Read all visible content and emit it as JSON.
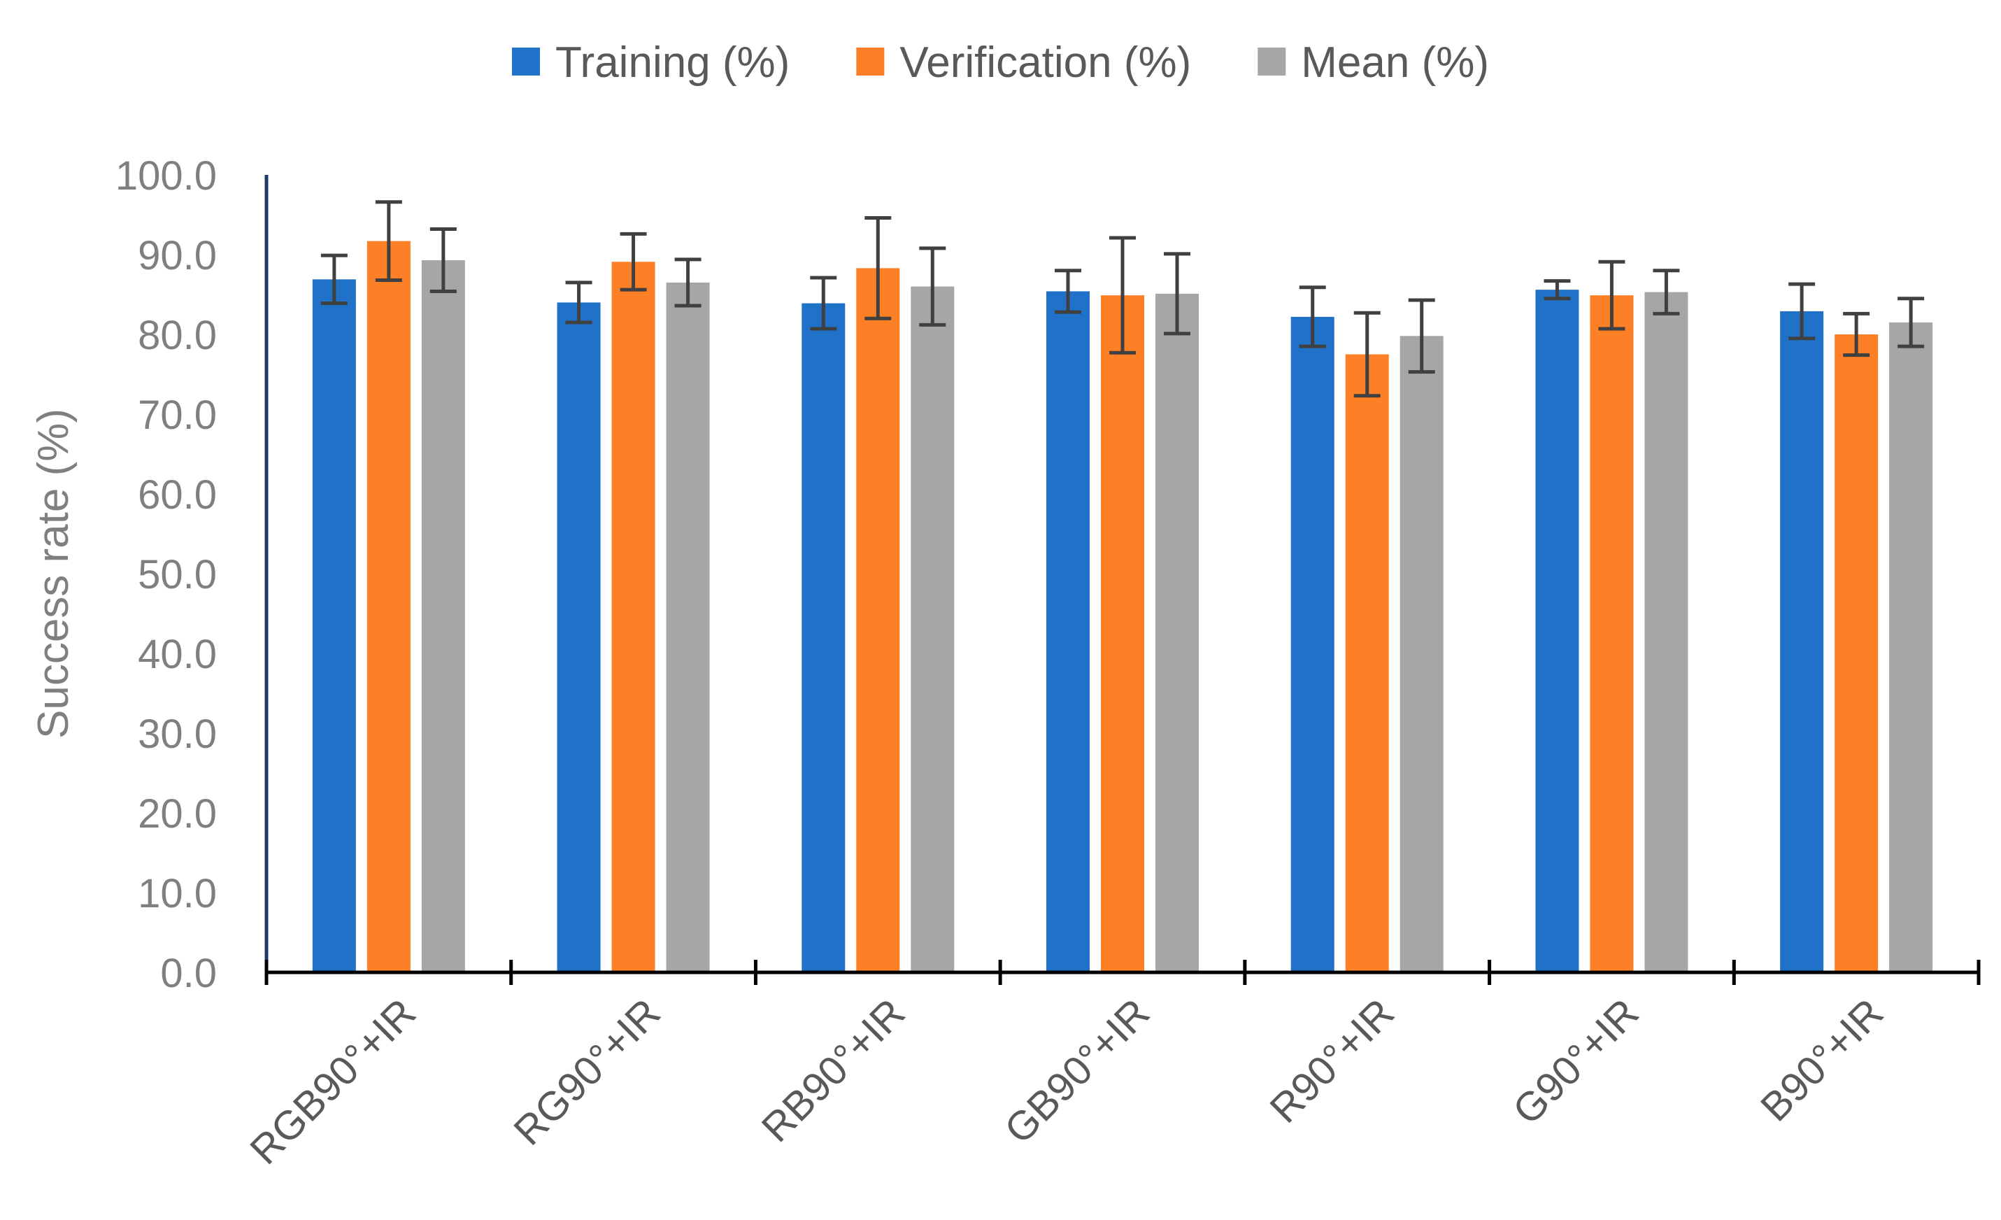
{
  "chart_data": {
    "type": "bar",
    "title": "",
    "xlabel": "",
    "ylabel": "Success rate (%)",
    "ylim": [
      0,
      100
    ],
    "ytick_step": 10,
    "ytick_labels": [
      "0.0",
      "10.0",
      "20.0",
      "30.0",
      "40.0",
      "50.0",
      "60.0",
      "70.0",
      "80.0",
      "90.0",
      "100.0"
    ],
    "grid": false,
    "legend_position": "top-center",
    "categories": [
      "RGB90°+IR",
      "RG90°+IR",
      "RB90°+IR",
      "GB90°+IR",
      "R90°+IR",
      "G90°+IR",
      "B90°+IR"
    ],
    "series": [
      {
        "name": "Training (%)",
        "color": "#1f72c8",
        "values": [
          86.9,
          84.0,
          83.9,
          85.4,
          82.2,
          85.6,
          82.9
        ],
        "errors": [
          3.0,
          2.5,
          3.2,
          2.6,
          3.7,
          1.1,
          3.4
        ]
      },
      {
        "name": "Verification (%)",
        "color": "#fd7f26",
        "values": [
          91.7,
          89.1,
          88.3,
          84.9,
          77.5,
          84.9,
          80.0
        ],
        "errors": [
          4.9,
          3.5,
          6.3,
          7.2,
          5.2,
          4.2,
          2.6
        ]
      },
      {
        "name": "Mean (%)",
        "color": "#a6a6a6",
        "values": [
          89.3,
          86.5,
          86.0,
          85.1,
          79.8,
          85.3,
          81.5
        ],
        "errors": [
          3.9,
          2.9,
          4.8,
          5.0,
          4.5,
          2.7,
          3.0
        ]
      }
    ],
    "error_bar_color": "#404040",
    "axis_color": "#000000",
    "y_axis_line_color": "#1f3864"
  }
}
